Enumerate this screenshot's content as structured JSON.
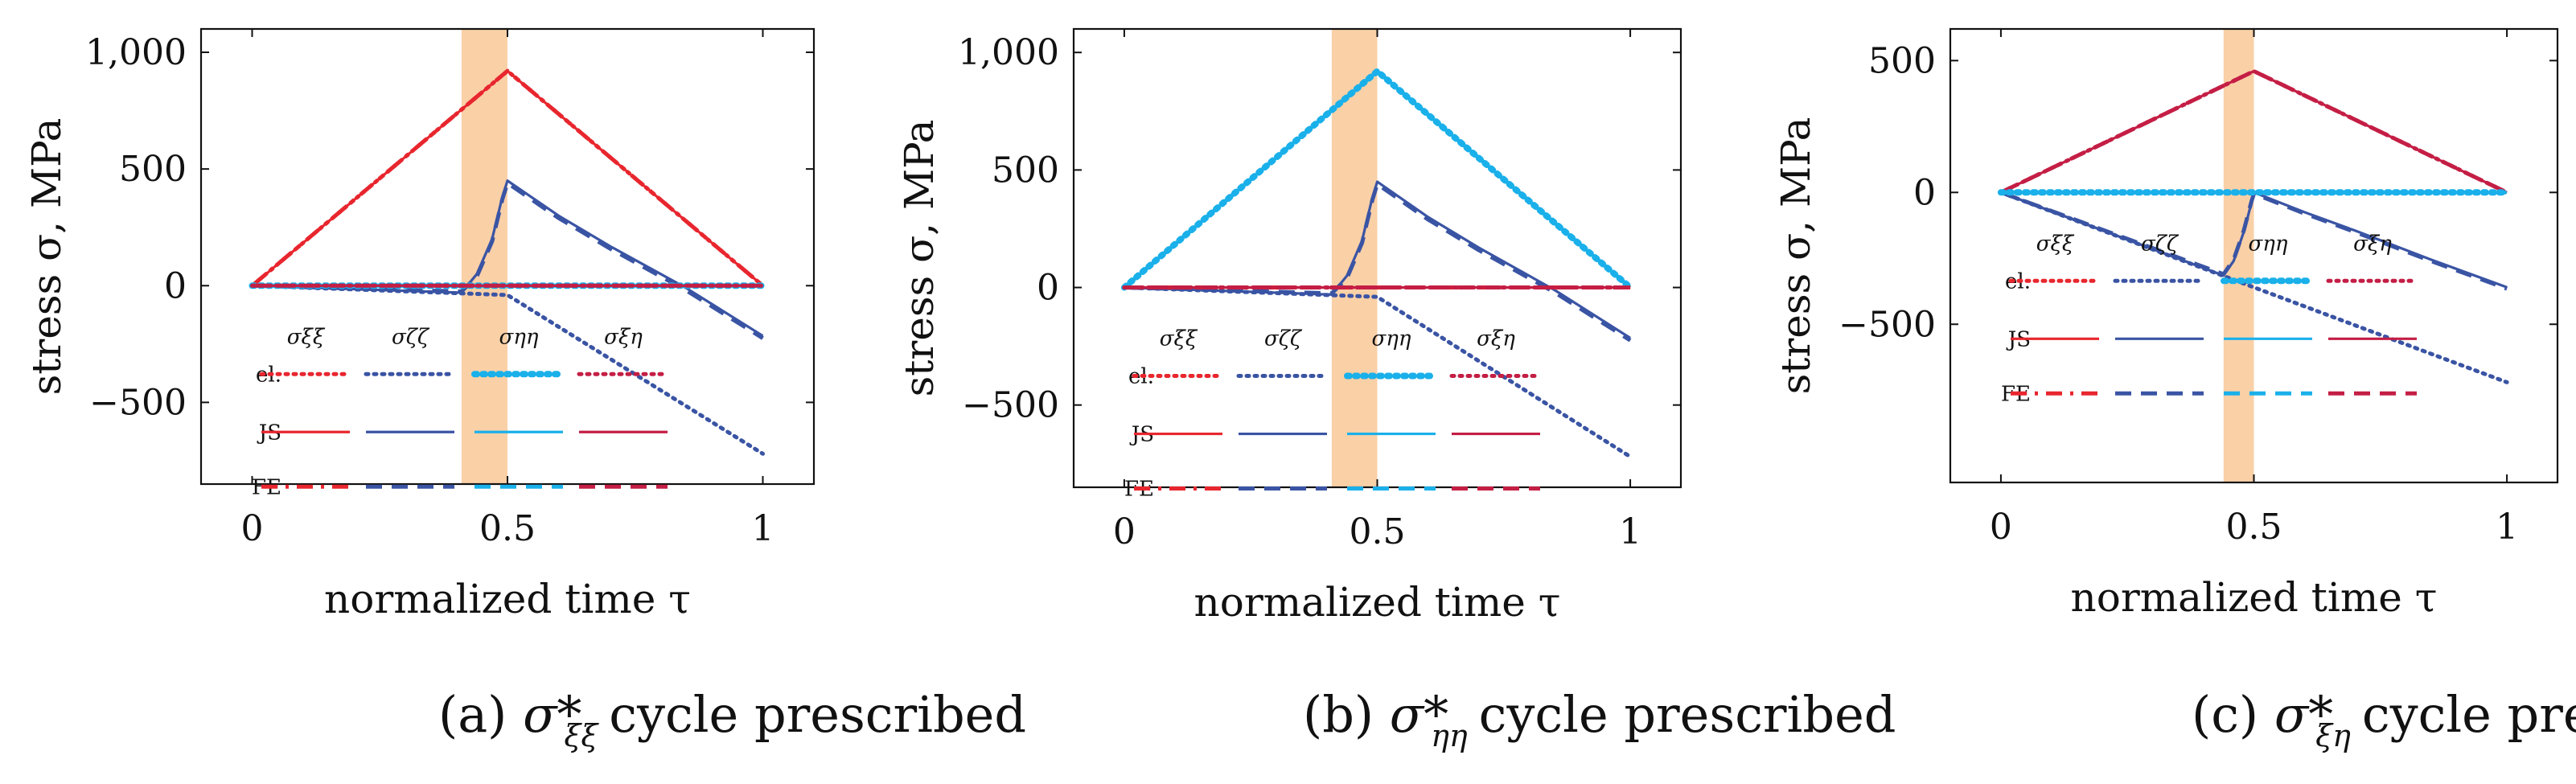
{
  "colors": {
    "xixi": "#e8262e",
    "zetazeta": "#3a54a4",
    "etaeta": "#1ab0ea",
    "xieta": "#c41e45",
    "band": "#f9c898"
  },
  "chart_data": [
    {
      "type": "line",
      "id": "a",
      "caption_label": "(a)",
      "caption_symbol": "σ*",
      "caption_subscript": "ξξ",
      "caption_text": "cycle prescribed",
      "xlabel": "normalized time τ",
      "ylabel": "stress σ, MPa",
      "xlim": [
        -0.1,
        1.1
      ],
      "ylim": [
        -850,
        1100
      ],
      "xticks": [
        {
          "value": 0,
          "label": "0"
        },
        {
          "value": 0.5,
          "label": "0.5"
        },
        {
          "value": 1,
          "label": "1"
        }
      ],
      "yticks": [
        {
          "value": 1000,
          "label": "1,000"
        },
        {
          "value": 500,
          "label": "500"
        },
        {
          "value": 0,
          "label": "0"
        },
        {
          "value": -500,
          "label": "−500"
        }
      ],
      "band": [
        0.41,
        0.5
      ],
      "legend": {
        "columns": [
          "σξξ",
          "σζζ",
          "σηη",
          "σξη"
        ],
        "rows": [
          "el.",
          "JS",
          "FE"
        ],
        "position": "lower-left"
      },
      "series": [
        {
          "name": "σξξ el.",
          "component": "xixi",
          "style": "dotted",
          "x": [
            0,
            0.5,
            1
          ],
          "y": [
            0,
            920,
            0
          ]
        },
        {
          "name": "σξξ JS",
          "component": "xixi",
          "style": "solid",
          "x": [
            0,
            0.5,
            1
          ],
          "y": [
            0,
            920,
            0
          ]
        },
        {
          "name": "σξξ FE",
          "component": "xixi",
          "style": "dashdot",
          "x": [
            0,
            0.5,
            1
          ],
          "y": [
            0,
            920,
            0
          ]
        },
        {
          "name": "σζζ el.",
          "component": "zetazeta",
          "style": "dotted",
          "x": [
            0,
            0.5,
            1
          ],
          "y": [
            0,
            -40,
            -720
          ]
        },
        {
          "name": "σζζ JS",
          "component": "zetazeta",
          "style": "solid",
          "x": [
            0,
            0.41,
            0.44,
            0.47,
            0.49,
            0.5,
            0.52,
            0.6,
            0.7,
            0.85,
            1
          ],
          "y": [
            0,
            -30,
            50,
            200,
            380,
            450,
            420,
            300,
            170,
            -10,
            -215
          ]
        },
        {
          "name": "σζζ FE",
          "component": "zetazeta",
          "style": "dashed",
          "x": [
            0,
            0.41,
            0.44,
            0.47,
            0.49,
            0.5,
            0.52,
            0.6,
            0.7,
            0.85,
            1
          ],
          "y": [
            0,
            -25,
            40,
            190,
            370,
            440,
            410,
            290,
            160,
            -20,
            -225
          ]
        },
        {
          "name": "σηη el.",
          "component": "etaeta",
          "style": "dotted",
          "x": [
            0,
            1
          ],
          "y": [
            0,
            0
          ]
        },
        {
          "name": "σηη JS",
          "component": "etaeta",
          "style": "solid",
          "x": [
            0,
            1
          ],
          "y": [
            0,
            0
          ]
        },
        {
          "name": "σηη FE",
          "component": "etaeta",
          "style": "dashed",
          "x": [
            0,
            1
          ],
          "y": [
            0,
            0
          ]
        },
        {
          "name": "σξη el.",
          "component": "xieta",
          "style": "dotted",
          "x": [
            0,
            1
          ],
          "y": [
            0,
            0
          ]
        },
        {
          "name": "σξη JS",
          "component": "xieta",
          "style": "solid",
          "x": [
            0,
            1
          ],
          "y": [
            0,
            0
          ]
        },
        {
          "name": "σξη FE",
          "component": "xieta",
          "style": "dashed",
          "x": [
            0,
            1
          ],
          "y": [
            0,
            0
          ]
        }
      ]
    },
    {
      "type": "line",
      "id": "b",
      "caption_label": "(b)",
      "caption_symbol": "σ*",
      "caption_subscript": "ηη",
      "caption_text": "cycle prescribed",
      "xlabel": "normalized time τ",
      "ylabel": "stress σ, MPa",
      "xlim": [
        -0.1,
        1.1
      ],
      "ylim": [
        -850,
        1100
      ],
      "xticks": [
        {
          "value": 0,
          "label": "0"
        },
        {
          "value": 0.5,
          "label": "0.5"
        },
        {
          "value": 1,
          "label": "1"
        }
      ],
      "yticks": [
        {
          "value": 1000,
          "label": "1,000"
        },
        {
          "value": 500,
          "label": "500"
        },
        {
          "value": 0,
          "label": "0"
        },
        {
          "value": -500,
          "label": "−500"
        }
      ],
      "band": [
        0.41,
        0.5
      ],
      "legend": {
        "columns": [
          "σξξ",
          "σζζ",
          "σηη",
          "σξη"
        ],
        "rows": [
          "el.",
          "JS",
          "FE"
        ],
        "position": "lower-left"
      },
      "series": [
        {
          "name": "σηη el.",
          "component": "etaeta",
          "style": "dotted",
          "x": [
            0,
            0.5,
            1
          ],
          "y": [
            0,
            920,
            0
          ]
        },
        {
          "name": "σηη JS",
          "component": "etaeta",
          "style": "solid",
          "x": [
            0,
            0.5,
            1
          ],
          "y": [
            0,
            920,
            0
          ]
        },
        {
          "name": "σηη FE",
          "component": "etaeta",
          "style": "dashed",
          "x": [
            0,
            0.5,
            1
          ],
          "y": [
            0,
            920,
            0
          ]
        },
        {
          "name": "σζζ el.",
          "component": "zetazeta",
          "style": "dotted",
          "x": [
            0,
            0.5,
            1
          ],
          "y": [
            0,
            -40,
            -720
          ]
        },
        {
          "name": "σζζ JS",
          "component": "zetazeta",
          "style": "solid",
          "x": [
            0,
            0.41,
            0.44,
            0.47,
            0.49,
            0.5,
            0.52,
            0.6,
            0.7,
            0.85,
            1
          ],
          "y": [
            0,
            -30,
            50,
            200,
            380,
            450,
            420,
            300,
            170,
            -10,
            -215
          ]
        },
        {
          "name": "σζζ FE",
          "component": "zetazeta",
          "style": "dashed",
          "x": [
            0,
            0.41,
            0.44,
            0.47,
            0.49,
            0.5,
            0.52,
            0.6,
            0.7,
            0.85,
            1
          ],
          "y": [
            0,
            -25,
            40,
            190,
            370,
            440,
            410,
            290,
            160,
            -20,
            -225
          ]
        },
        {
          "name": "σξξ el.",
          "component": "xixi",
          "style": "dotted",
          "x": [
            0,
            1
          ],
          "y": [
            0,
            0
          ]
        },
        {
          "name": "σξξ JS",
          "component": "xixi",
          "style": "solid",
          "x": [
            0,
            1
          ],
          "y": [
            0,
            0
          ]
        },
        {
          "name": "σξξ FE",
          "component": "xixi",
          "style": "dashdot",
          "x": [
            0,
            1
          ],
          "y": [
            0,
            0
          ]
        },
        {
          "name": "σξη el.",
          "component": "xieta",
          "style": "dotted",
          "x": [
            0,
            1
          ],
          "y": [
            0,
            0
          ]
        },
        {
          "name": "σξη JS",
          "component": "xieta",
          "style": "solid",
          "x": [
            0,
            1
          ],
          "y": [
            0,
            0
          ]
        },
        {
          "name": "σξη FE",
          "component": "xieta",
          "style": "dashed",
          "x": [
            0,
            1
          ],
          "y": [
            0,
            0
          ]
        }
      ]
    },
    {
      "type": "line",
      "id": "c",
      "caption_label": "(c)",
      "caption_symbol": "σ*",
      "caption_subscript": "ξη",
      "caption_text": "cycle prescribed",
      "xlabel": "normalized time τ",
      "ylabel": "stress σ, MPa",
      "xlim": [
        -0.1,
        1.1
      ],
      "ylim": [
        -1100,
        620
      ],
      "xticks": [
        {
          "value": 0,
          "label": "0"
        },
        {
          "value": 0.5,
          "label": "0.5"
        },
        {
          "value": 1,
          "label": "1"
        }
      ],
      "yticks": [
        {
          "value": 500,
          "label": "500"
        },
        {
          "value": 0,
          "label": "0"
        },
        {
          "value": -500,
          "label": "−500"
        }
      ],
      "band": [
        0.44,
        0.5
      ],
      "legend": {
        "columns": [
          "σξξ",
          "σζζ",
          "σηη",
          "σξη"
        ],
        "rows": [
          "el.",
          "JS",
          "FE"
        ],
        "position": "lower-left"
      },
      "series": [
        {
          "name": "σξη el.",
          "component": "xieta",
          "style": "dotted",
          "x": [
            0,
            0.5,
            1
          ],
          "y": [
            0,
            460,
            0
          ]
        },
        {
          "name": "σξη JS",
          "component": "xieta",
          "style": "solid",
          "x": [
            0,
            0.5,
            1
          ],
          "y": [
            0,
            460,
            0
          ]
        },
        {
          "name": "σξη FE",
          "component": "xieta",
          "style": "dashed",
          "x": [
            0,
            0.5,
            1
          ],
          "y": [
            0,
            460,
            0
          ]
        },
        {
          "name": "σζζ el.",
          "component": "zetazeta",
          "style": "dotted",
          "x": [
            0,
            1
          ],
          "y": [
            0,
            -720
          ]
        },
        {
          "name": "σζζ JS",
          "component": "zetazeta",
          "style": "solid",
          "x": [
            0,
            0.44,
            0.46,
            0.48,
            0.495,
            0.5,
            0.6,
            0.7,
            0.85,
            1
          ],
          "y": [
            0,
            -315,
            -260,
            -150,
            -40,
            0,
            -75,
            -145,
            -255,
            -360
          ]
        },
        {
          "name": "σζζ FE",
          "component": "zetazeta",
          "style": "dashed",
          "x": [
            0,
            0.44,
            0.46,
            0.48,
            0.495,
            0.5,
            0.6,
            0.7,
            0.85,
            1
          ],
          "y": [
            0,
            -310,
            -255,
            -145,
            -35,
            -5,
            -80,
            -150,
            -260,
            -365
          ]
        },
        {
          "name": "σξξ el.",
          "component": "xixi",
          "style": "dotted",
          "x": [
            0,
            1
          ],
          "y": [
            0,
            0
          ]
        },
        {
          "name": "σξξ JS",
          "component": "xixi",
          "style": "solid",
          "x": [
            0,
            1
          ],
          "y": [
            0,
            0
          ]
        },
        {
          "name": "σηη el.",
          "component": "etaeta",
          "style": "dotted",
          "x": [
            0,
            1
          ],
          "y": [
            0,
            0
          ]
        },
        {
          "name": "σηη JS",
          "component": "etaeta",
          "style": "solid",
          "x": [
            0,
            1
          ],
          "y": [
            0,
            0
          ]
        },
        {
          "name": "σηη FE",
          "component": "etaeta",
          "style": "dashed",
          "x": [
            0,
            1
          ],
          "y": [
            0,
            0
          ]
        }
      ]
    }
  ]
}
